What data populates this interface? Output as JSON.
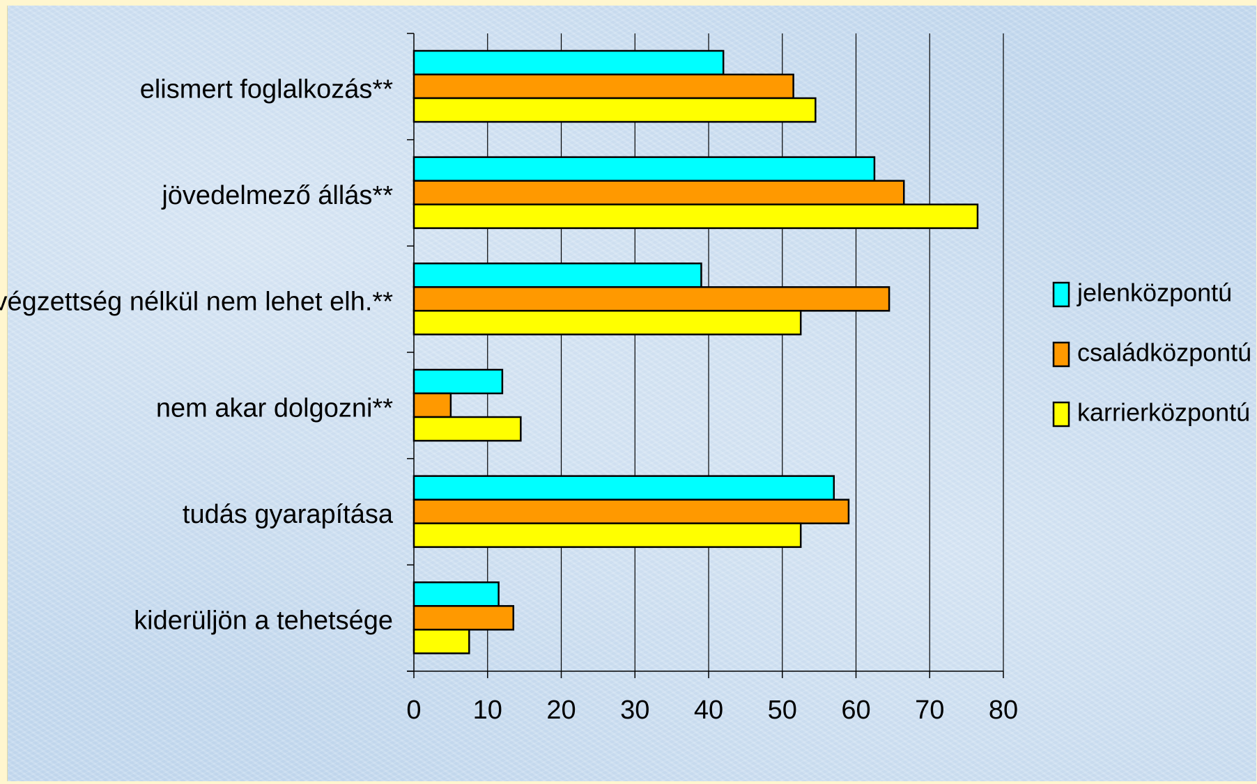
{
  "chart_data": {
    "type": "bar",
    "orientation": "horizontal",
    "categories": [
      "elismert foglalkozás**",
      "jövedelmező állás**",
      "végzettség nélkül nem lehet elh.**",
      "nem akar dolgozni**",
      "tudás gyarapítása",
      "kiderüljön a tehetsége"
    ],
    "series": [
      {
        "name": "jelenközpontú",
        "color": "#00ffff",
        "values": [
          42,
          62.5,
          39,
          12,
          57,
          11.5
        ]
      },
      {
        "name": "családközpontú",
        "color": "#ff9900",
        "values": [
          51.5,
          66.5,
          64.5,
          5,
          59,
          13.5
        ]
      },
      {
        "name": "karrierközpontú",
        "color": "#ffff00",
        "values": [
          54.5,
          76.5,
          52.5,
          14.5,
          52.5,
          7.5
        ]
      }
    ],
    "xlim": [
      0,
      80
    ],
    "xticks": [
      0,
      10,
      20,
      30,
      40,
      50,
      60,
      70,
      80
    ],
    "vertical_gridlines": true,
    "legend_position": "right",
    "title": "",
    "xlabel": "",
    "ylabel": ""
  }
}
